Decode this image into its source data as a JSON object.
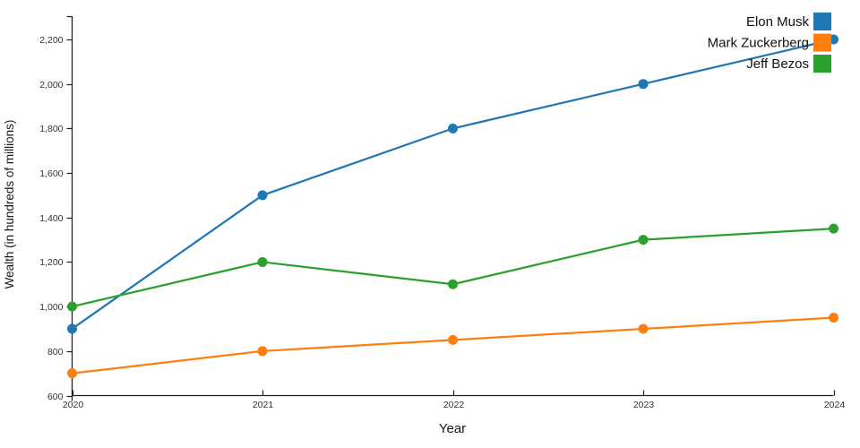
{
  "chart_data": {
    "type": "line",
    "title": "",
    "xlabel": "Year",
    "ylabel": "Wealth (in hundreds of millions)",
    "x": [
      2020,
      2021,
      2022,
      2023,
      2024
    ],
    "x_tick_labels": [
      "2020",
      "2021",
      "2022",
      "2023",
      "2024"
    ],
    "xlim": [
      2020,
      2024
    ],
    "y_ticks": [
      600,
      800,
      1000,
      1200,
      1400,
      1600,
      1800,
      2000,
      2200
    ],
    "y_tick_labels": [
      "600",
      "800",
      "1,000",
      "1,200",
      "1,400",
      "1,600",
      "1,800",
      "2,000",
      "2,200"
    ],
    "ylim": [
      600,
      2200
    ],
    "grid": false,
    "legend_position": "top-right",
    "axis_color": "#222222",
    "text_color": "#333333",
    "series": [
      {
        "name": "Elon Musk",
        "color": "#1f77b4",
        "values": [
          900,
          1500,
          1800,
          2000,
          2200
        ]
      },
      {
        "name": "Mark Zuckerberg",
        "color": "#ff7f0e",
        "values": [
          700,
          800,
          850,
          900,
          950
        ]
      },
      {
        "name": "Jeff Bezos",
        "color": "#2ca02c",
        "values": [
          1000,
          1200,
          1100,
          1300,
          1350
        ]
      }
    ]
  }
}
